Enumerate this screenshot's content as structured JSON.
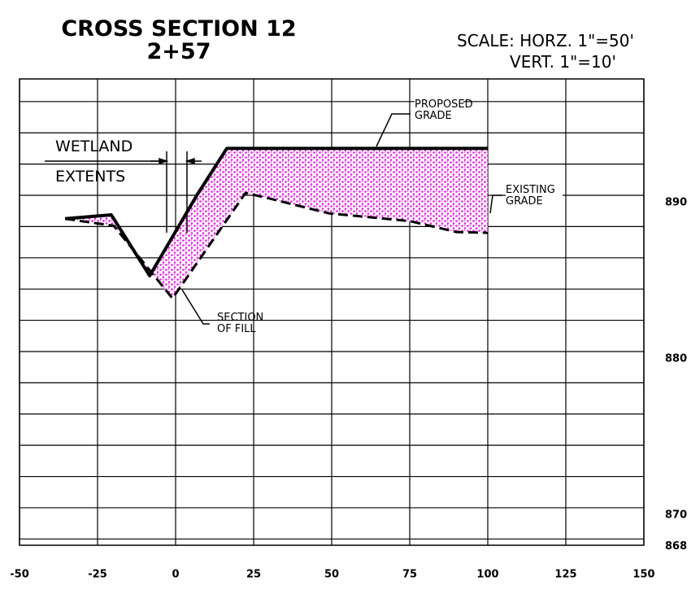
{
  "chart_data": {
    "type": "line",
    "title": "CROSS SECTION 12",
    "subtitle": "2+57",
    "scale": [
      "SCALE: HORZ. 1\"=50'",
      "VERT. 1\"=10'"
    ],
    "annotations": [
      "WETLAND",
      "EXTENTS",
      "SECTION OF FILL"
    ],
    "xlim": [
      -50,
      150
    ],
    "xticks": [
      -50,
      -25,
      0,
      25,
      50,
      75,
      100,
      125,
      150
    ],
    "ylim": [
      867.6,
      897.45
    ],
    "yticks": [
      868,
      870,
      880,
      890
    ],
    "ygrid": [
      868,
      870,
      872,
      874,
      876,
      878,
      880,
      882,
      884,
      886,
      888,
      890,
      892,
      894,
      896
    ],
    "grid": true,
    "fill_color": "#e020e0",
    "series": [
      {
        "name": "PROPOSED GRADE",
        "color": "#000000",
        "dash": false,
        "x": [
          -35.4,
          -20.6,
          -8.3,
          6.8,
          16.4,
          100
        ],
        "values": [
          888.5,
          888.75,
          884.85,
          890,
          893,
          893
        ]
      },
      {
        "name": "EXISTING GRADE",
        "color": "#000000",
        "dash": true,
        "x": [
          -35.4,
          -19.8,
          -1,
          22.4,
          30,
          49,
          75,
          90,
          100
        ],
        "values": [
          888.5,
          888.05,
          883.4,
          890.15,
          889.8,
          888.85,
          888.35,
          887.65,
          887.6
        ]
      }
    ]
  }
}
